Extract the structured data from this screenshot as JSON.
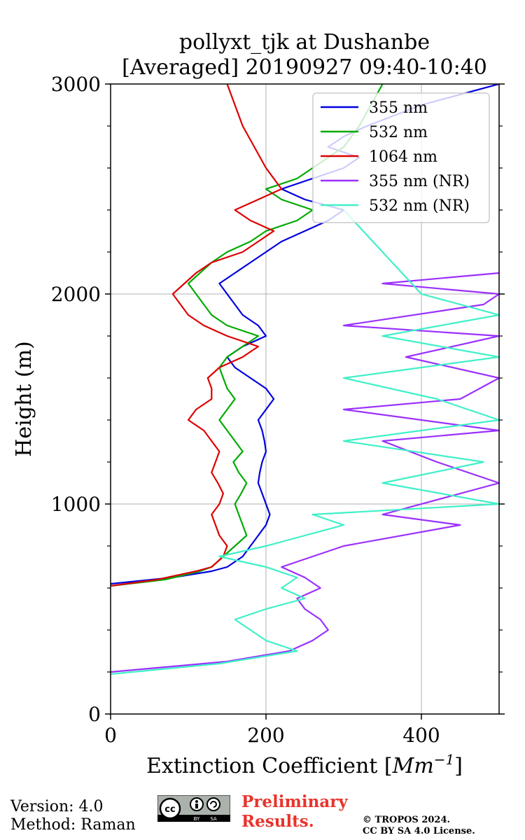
{
  "chart_data": {
    "type": "line",
    "title_line1": "pollyxt_tjk at Dushanbe",
    "title_line2": "[Averaged] 20190927 09:40-10:40",
    "xlabel_text": "Extinction Coefficient [",
    "xlabel_unit": "Mm",
    "xlabel_exp": "−1",
    "xlabel_close": "]",
    "ylabel": "Height (m)",
    "xlim": [
      0,
      500
    ],
    "ylim": [
      0,
      3000
    ],
    "x_ticks": [
      0,
      200,
      400
    ],
    "y_ticks": [
      0,
      1000,
      2000,
      3000
    ],
    "grid_x": [
      200,
      400
    ],
    "grid_y": [
      1000,
      2000
    ],
    "legend_position": "top-right",
    "series": [
      {
        "name": "355 nm",
        "color": "#0000e0",
        "x": [
          0,
          80,
          130,
          150,
          170,
          180,
          190,
          200,
          205,
          200,
          195,
          190,
          192,
          195,
          200,
          198,
          195,
          190,
          200,
          210,
          200,
          180,
          160,
          150,
          170,
          200,
          190,
          170,
          160,
          150,
          140,
          160,
          180,
          200,
          220,
          250,
          280,
          300,
          250,
          220,
          260,
          300,
          320,
          280,
          300,
          330,
          400,
          500
        ],
        "y": [
          620,
          650,
          680,
          700,
          750,
          800,
          850,
          900,
          950,
          1000,
          1050,
          1100,
          1150,
          1200,
          1250,
          1300,
          1350,
          1400,
          1450,
          1500,
          1550,
          1600,
          1650,
          1700,
          1750,
          1800,
          1850,
          1900,
          1950,
          2000,
          2050,
          2100,
          2150,
          2200,
          2250,
          2300,
          2350,
          2400,
          2450,
          2500,
          2550,
          2600,
          2650,
          2700,
          2750,
          2800,
          2900,
          3000
        ]
      },
      {
        "name": "532 nm",
        "color": "#00aa00",
        "x": [
          0,
          70,
          115,
          130,
          145,
          160,
          175,
          170,
          165,
          160,
          168,
          175,
          165,
          158,
          170,
          160,
          150,
          140,
          150,
          160,
          150,
          145,
          140,
          150,
          170,
          190,
          150,
          130,
          120,
          110,
          100,
          115,
          130,
          150,
          180,
          200,
          240,
          260,
          220,
          200,
          240,
          260,
          280,
          300,
          320,
          350
        ],
        "y": [
          610,
          640,
          680,
          700,
          750,
          800,
          850,
          900,
          950,
          1000,
          1050,
          1100,
          1150,
          1200,
          1250,
          1300,
          1350,
          1400,
          1450,
          1500,
          1550,
          1600,
          1650,
          1700,
          1750,
          1800,
          1850,
          1900,
          1950,
          2000,
          2050,
          2100,
          2150,
          2200,
          2250,
          2300,
          2350,
          2400,
          2450,
          2500,
          2550,
          2600,
          2650,
          2700,
          2800,
          3000
        ]
      },
      {
        "name": "1064 nm",
        "color": "#dd0000",
        "x": [
          0,
          60,
          110,
          130,
          145,
          150,
          140,
          135,
          130,
          140,
          145,
          138,
          130,
          135,
          140,
          130,
          120,
          100,
          110,
          130,
          130,
          125,
          140,
          170,
          190,
          150,
          120,
          100,
          90,
          80,
          95,
          110,
          130,
          170,
          190,
          210,
          180,
          160,
          190,
          220,
          200,
          170,
          150
        ],
        "y": [
          610,
          640,
          680,
          700,
          750,
          800,
          850,
          900,
          950,
          1000,
          1050,
          1100,
          1150,
          1200,
          1250,
          1300,
          1350,
          1400,
          1450,
          1500,
          1550,
          1600,
          1650,
          1700,
          1750,
          1800,
          1850,
          1900,
          1950,
          2000,
          2050,
          2100,
          2150,
          2200,
          2250,
          2300,
          2350,
          2400,
          2450,
          2500,
          2600,
          2800,
          3000
        ]
      },
      {
        "name": "355 nm (NR)",
        "color": "#9b30ff",
        "x": [
          0,
          150,
          230,
          260,
          280,
          270,
          250,
          240,
          270,
          250,
          220,
          260,
          300,
          450,
          350,
          500,
          420,
          350,
          500,
          300,
          450,
          500,
          380,
          500,
          300,
          480,
          500,
          350,
          500
        ],
        "y": [
          200,
          250,
          300,
          350,
          400,
          450,
          500,
          550,
          600,
          650,
          700,
          750,
          800,
          900,
          950,
          1100,
          1200,
          1300,
          1350,
          1450,
          1500,
          1600,
          1700,
          1800,
          1850,
          1950,
          2000,
          2050,
          2100
        ]
      },
      {
        "name": "532 nm (NR)",
        "color": "#40f0c8",
        "x": [
          0,
          140,
          240,
          200,
          180,
          160,
          200,
          250,
          220,
          240,
          200,
          140,
          200,
          250,
          300,
          260,
          500,
          350,
          480,
          300,
          500,
          420,
          300,
          500,
          350,
          500,
          400,
          300
        ],
        "y": [
          190,
          240,
          300,
          350,
          400,
          450,
          500,
          550,
          600,
          650,
          700,
          750,
          800,
          850,
          900,
          950,
          1000,
          1100,
          1200,
          1300,
          1400,
          1500,
          1600,
          1700,
          1800,
          1900,
          2000,
          2400
        ]
      }
    ]
  },
  "footer": {
    "version": "Version: 4.0",
    "method": "Method: Raman",
    "preliminary_line1": "Preliminary",
    "preliminary_line2": "Results.",
    "copyright_line1": "© TROPOS 2024.",
    "copyright_line2": "CC BY SA 4.0 License.",
    "cc_badge": {
      "cc": "cc",
      "by": "BY",
      "sa": "SA"
    }
  }
}
